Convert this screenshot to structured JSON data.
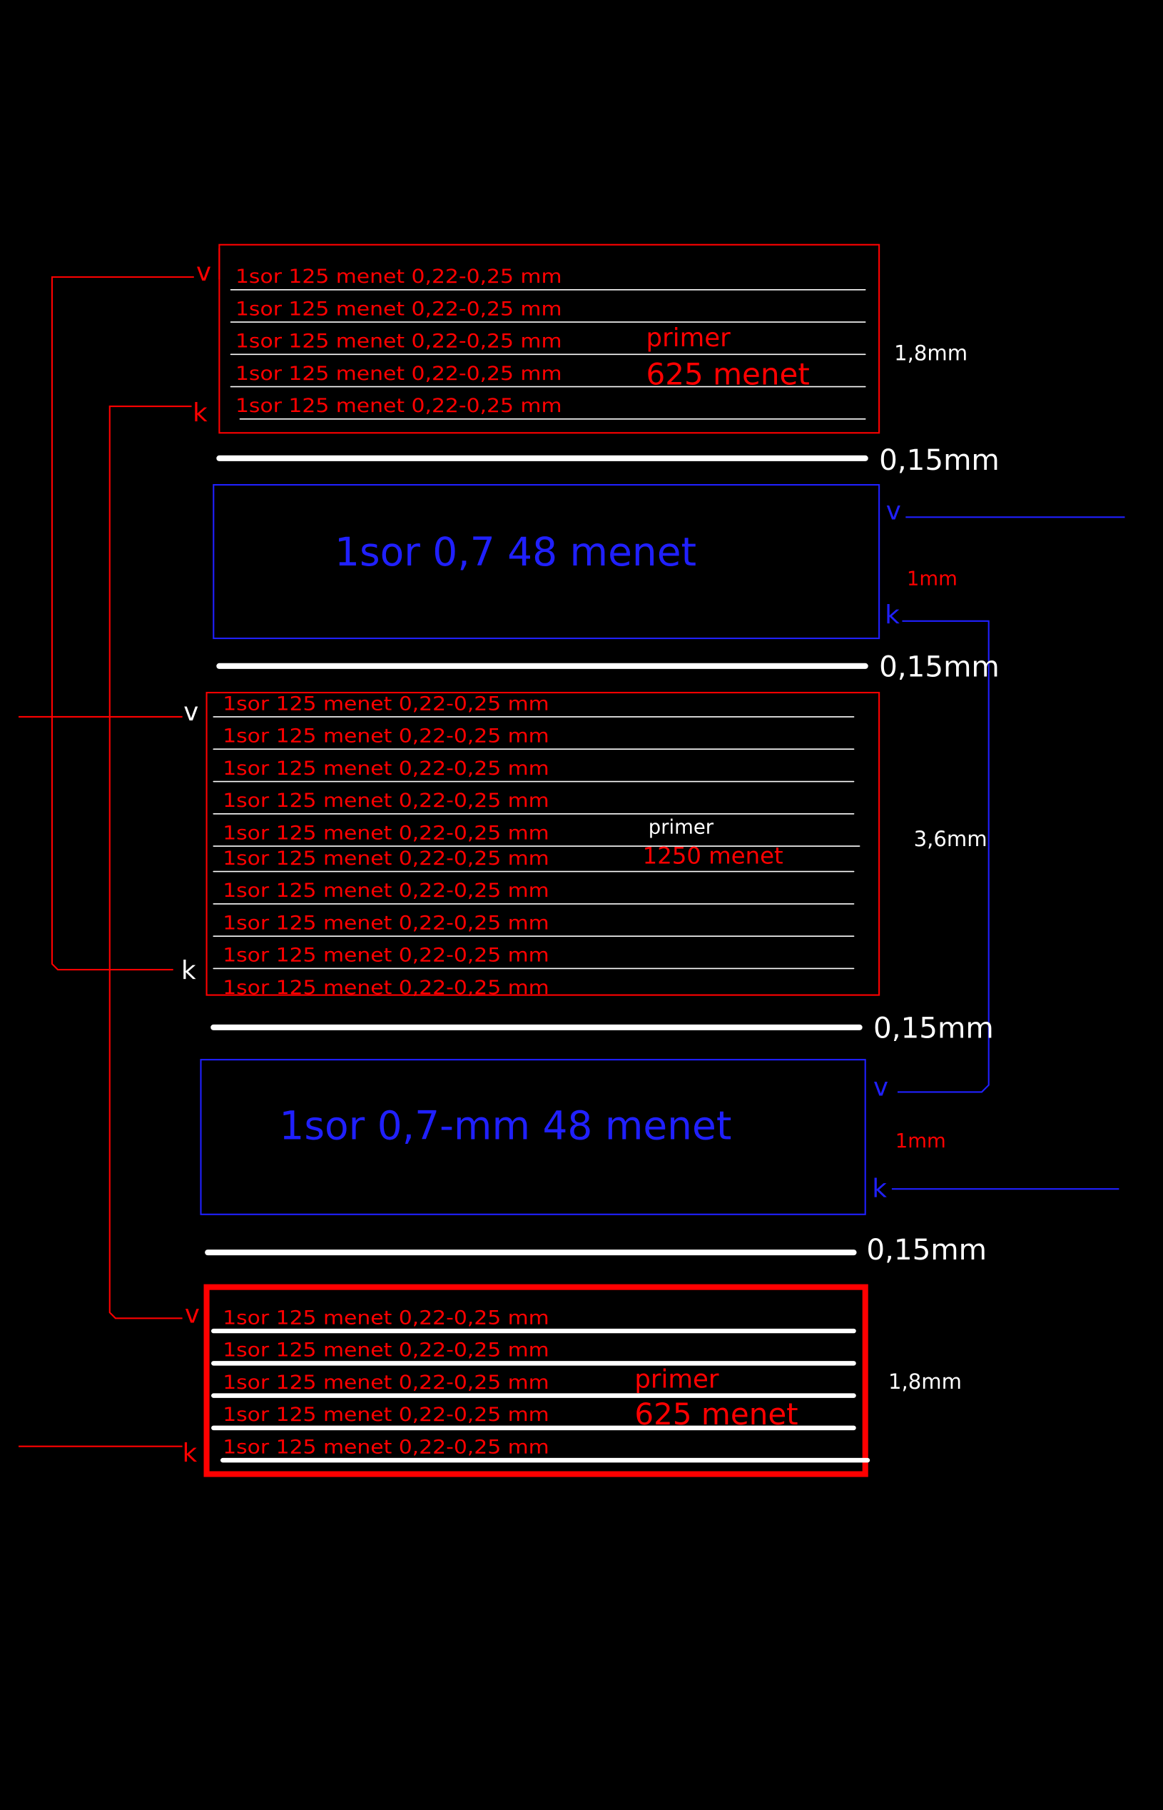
{
  "windings": [
    {
      "layers": [
        "1sor 125 menet 0,22-0,25 mm",
        "1sor 125 menet 0,22-0,25 mm",
        "1sor 125 menet 0,22-0,25 mm",
        "1sor 125 menet 0,22-0,25 mm",
        "1sor 125 menet 0,22-0,25 mm"
      ],
      "label": [
        "primer",
        "625 menet"
      ],
      "thickness": "1,8mm",
      "start": "v",
      "end": "k"
    },
    {
      "label": [
        "1sor 0,7  48 menet"
      ],
      "thickness": "1mm",
      "start": "v",
      "end": "k"
    },
    {
      "layers": [
        "1sor 125 menet 0,22-0,25 mm",
        "1sor 125 menet 0,22-0,25 mm",
        "1sor 125 menet 0,22-0,25 mm",
        "1sor 125 menet 0,22-0,25 mm",
        "1sor 125 menet 0,22-0,25 mm",
        "1sor 125 menet 0,22-0,25 mm",
        "1sor 125 menet 0,22-0,25 mm",
        "1sor 125 menet 0,22-0,25 mm",
        "1sor 125 menet 0,22-0,25 mm",
        "1sor 125 menet 0,22-0,25 mm"
      ],
      "label": [
        "primer",
        "1250 menet"
      ],
      "thickness": "3,6mm",
      "start": "v",
      "end": "k"
    },
    {
      "label": [
        "1sor 0,7-mm  48 menet"
      ],
      "thickness": "1mm",
      "start": "v",
      "end": "k"
    },
    {
      "layers": [
        "1sor 125 menet 0,22-0,25 mm",
        "1sor 125 menet 0,22-0,25 mm",
        "1sor 125 menet 0,22-0,25 mm",
        "1sor 125 menet 0,22-0,25 mm",
        "1sor 125 menet 0,22-0,25 mm"
      ],
      "label": [
        "primer",
        "625 menet"
      ],
      "thickness": "1,8mm",
      "start": "v",
      "end": "k"
    }
  ],
  "insulation": [
    "0,15mm",
    "0,15mm",
    "0,15mm",
    "0,15mm"
  ]
}
